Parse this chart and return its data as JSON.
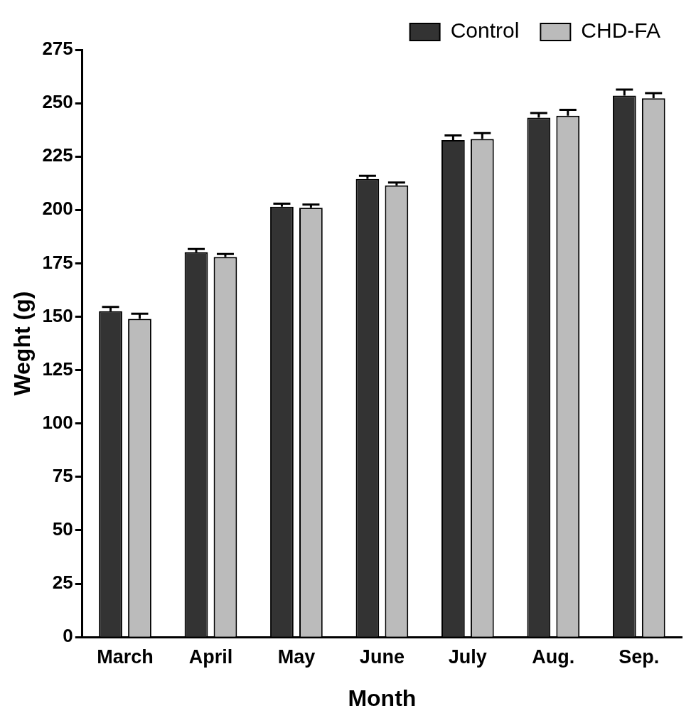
{
  "chart_data": {
    "type": "bar",
    "xlabel": "Month",
    "ylabel": "Weght (g)",
    "categories": [
      "March",
      "April",
      "May",
      "June",
      "July",
      "Aug.",
      "Sep."
    ],
    "series": [
      {
        "name": "Control",
        "color": "#333333",
        "values": [
          152.6,
          180.2,
          201.5,
          214.5,
          232.7,
          243.2,
          253.5
        ],
        "errors": [
          2.0,
          1.5,
          1.4,
          1.5,
          2.2,
          2.2,
          2.9
        ]
      },
      {
        "name": "CHD-FA",
        "color": "#bbbbbb",
        "values": [
          149,
          178,
          201,
          211.5,
          233.2,
          244.1,
          252.3
        ],
        "errors": [
          2.4,
          1.4,
          1.5,
          1.3,
          2.8,
          2.8,
          2.4
        ]
      }
    ],
    "ylim": [
      0,
      275
    ],
    "yticks": [
      0,
      25,
      50,
      75,
      100,
      125,
      150,
      175,
      200,
      225,
      250,
      275
    ],
    "grid": false,
    "legend": "top right"
  }
}
